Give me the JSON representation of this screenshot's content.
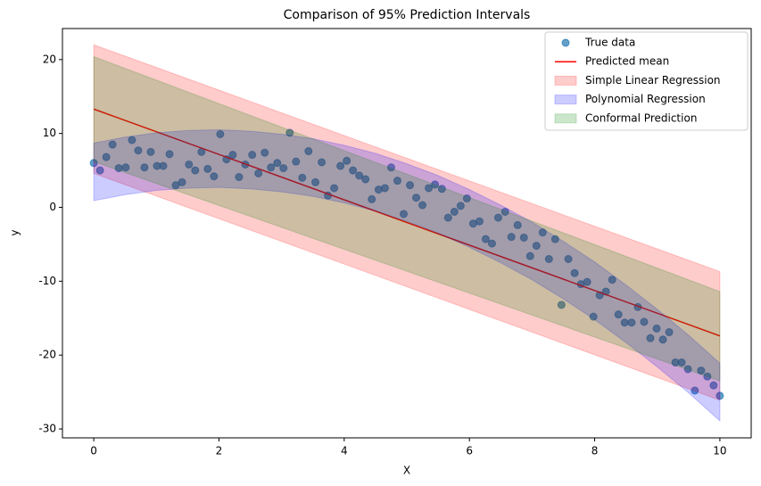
{
  "chart_data": {
    "type": "combo",
    "title": "Comparison of 95% Prediction Intervals",
    "x_label": "X",
    "y_label": "y",
    "xlim": [
      -0.5,
      10.5
    ],
    "ylim": [
      -31.2,
      24.2
    ],
    "xticks": [
      0,
      2,
      4,
      6,
      8,
      10
    ],
    "yticks": [
      -30,
      -20,
      -10,
      0,
      10,
      20
    ],
    "grid": false,
    "legend": "upper right",
    "series": [
      {
        "name": "True data",
        "type": "scatter",
        "color": "#1f77b4",
        "x": [
          0,
          0.1,
          0.2,
          0.3,
          0.4,
          0.51,
          0.61,
          0.71,
          0.81,
          0.91,
          1.01,
          1.11,
          1.21,
          1.31,
          1.41,
          1.52,
          1.62,
          1.72,
          1.82,
          1.92,
          2.02,
          2.12,
          2.22,
          2.32,
          2.42,
          2.53,
          2.63,
          2.73,
          2.83,
          2.93,
          3.03,
          3.13,
          3.23,
          3.33,
          3.43,
          3.54,
          3.64,
          3.74,
          3.84,
          3.94,
          4.04,
          4.14,
          4.24,
          4.34,
          4.44,
          4.55,
          4.65,
          4.75,
          4.85,
          4.95,
          5.05,
          5.15,
          5.25,
          5.35,
          5.45,
          5.56,
          5.66,
          5.76,
          5.86,
          5.96,
          6.06,
          6.16,
          6.26,
          6.36,
          6.46,
          6.57,
          6.67,
          6.77,
          6.87,
          6.97,
          7.07,
          7.17,
          7.27,
          7.37,
          7.47,
          7.58,
          7.68,
          7.78,
          7.88,
          7.98,
          8.08,
          8.18,
          8.28,
          8.38,
          8.48,
          8.59,
          8.69,
          8.79,
          8.89,
          8.99,
          9.09,
          9.19,
          9.29,
          9.39,
          9.49,
          9.6,
          9.7,
          9.8,
          9.9,
          10
        ],
        "values": [
          6.0,
          5.0,
          6.8,
          8.5,
          5.3,
          5.4,
          9.1,
          7.7,
          5.4,
          7.5,
          5.6,
          5.6,
          7.2,
          3.0,
          3.4,
          5.8,
          5.0,
          7.5,
          5.2,
          4.2,
          9.9,
          6.5,
          7.1,
          4.1,
          5.8,
          7.1,
          4.6,
          7.4,
          5.4,
          6.0,
          5.3,
          10.1,
          6.2,
          4.0,
          7.6,
          3.4,
          6.1,
          1.6,
          2.6,
          5.6,
          6.3,
          5.0,
          4.3,
          3.8,
          1.1,
          2.4,
          2.6,
          5.4,
          3.6,
          -0.9,
          3.0,
          1.3,
          0.3,
          2.6,
          3.1,
          2.5,
          -1.4,
          -0.6,
          0.2,
          1.2,
          -2.2,
          -1.9,
          -4.3,
          -4.9,
          -1.4,
          -0.6,
          -4.0,
          -2.4,
          -4.1,
          -6.6,
          -5.2,
          -3.4,
          -7.0,
          -4.3,
          -13.2,
          -7.0,
          -8.9,
          -10.4,
          -10.1,
          -14.8,
          -11.9,
          -11.4,
          -9.8,
          -14.5,
          -15.6,
          -15.6,
          -13.5,
          -15.5,
          -17.7,
          -16.4,
          -17.9,
          -16.9,
          -21.0,
          -21.0,
          -21.9,
          -24.8,
          -22.1,
          -22.9,
          -24.1,
          -25.5
        ]
      },
      {
        "name": "Predicted mean",
        "type": "line",
        "color": "#ff0000",
        "x": [
          0,
          10
        ],
        "values": [
          13.3,
          -17.4
        ]
      },
      {
        "name": "Simple Linear Regression",
        "type": "band",
        "color": "#ff0000",
        "x": [
          0,
          10
        ],
        "lower": [
          4.6,
          -26.1
        ],
        "upper": [
          22.0,
          -8.7
        ]
      },
      {
        "name": "Polynomial Regression",
        "type": "band",
        "color": "#0000ff",
        "x": [
          0,
          0.5,
          1,
          1.5,
          2,
          2.5,
          3,
          3.5,
          4,
          4.5,
          5,
          5.5,
          6,
          6.5,
          7,
          7.5,
          8,
          8.5,
          9,
          9.5,
          10
        ],
        "lower": [
          0.9,
          1.7,
          2.3,
          2.6,
          2.7,
          2.5,
          2.1,
          1.5,
          0.6,
          -0.5,
          -1.9,
          -3.5,
          -5.4,
          -7.5,
          -9.8,
          -12.4,
          -15.2,
          -18.3,
          -21.6,
          -25.1,
          -28.9
        ],
        "upper": [
          8.7,
          9.5,
          10.1,
          10.4,
          10.5,
          10.3,
          9.9,
          9.3,
          8.4,
          7.3,
          5.9,
          4.3,
          2.4,
          0.3,
          -2.0,
          -4.6,
          -7.4,
          -10.5,
          -13.8,
          -17.3,
          -21.1
        ]
      },
      {
        "name": "Conformal Prediction",
        "type": "band",
        "color": "#008000",
        "x": [
          0,
          10
        ],
        "lower": [
          6.2,
          -23.5
        ],
        "upper": [
          20.4,
          -11.4
        ]
      }
    ]
  }
}
